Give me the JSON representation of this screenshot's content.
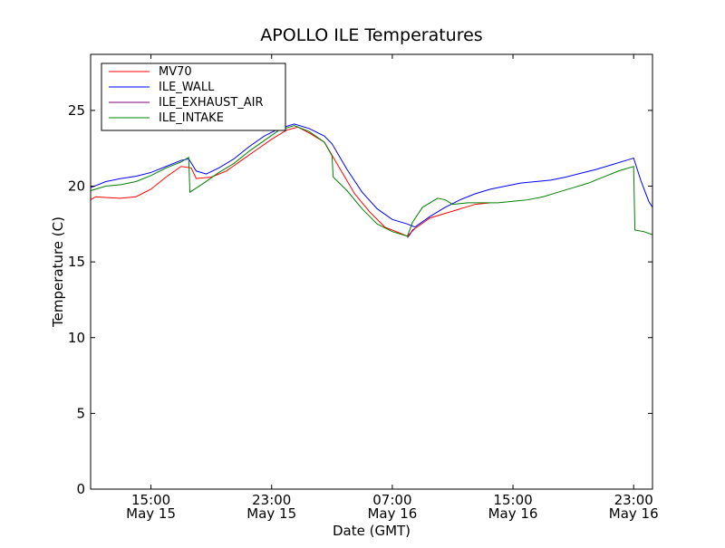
{
  "chart_data": {
    "type": "line",
    "title": "APOLLO ILE Temperatures",
    "xlabel": "Date (GMT)",
    "ylabel": "Temperature (C)",
    "xlim": [
      "2013-05-15 11:00",
      "2013-05-17 00:15"
    ],
    "ylim": [
      0,
      28.7
    ],
    "grid": false,
    "legend_position": "top-left",
    "x_ticks": [
      {
        "x": "2013-05-15 15:00",
        "line1": "15:00",
        "line2": "May 15"
      },
      {
        "x": "2013-05-15 23:00",
        "line1": "23:00",
        "line2": "May 15"
      },
      {
        "x": "2013-05-16 07:00",
        "line1": "07:00",
        "line2": "May 16"
      },
      {
        "x": "2013-05-16 15:00",
        "line1": "15:00",
        "line2": "May 16"
      },
      {
        "x": "2013-05-16 23:00",
        "line1": "23:00",
        "line2": "May 16"
      }
    ],
    "y_ticks": [
      0,
      5,
      10,
      15,
      20,
      25
    ],
    "series": [
      {
        "name": "MV70",
        "color": "#ff0000",
        "points": [
          [
            "2013-05-15 11:00",
            19.1
          ],
          [
            "2013-05-15 11:20",
            19.3
          ],
          [
            "2013-05-15 12:00",
            19.25
          ],
          [
            "2013-05-15 13:00",
            19.2
          ],
          [
            "2013-05-15 14:00",
            19.3
          ],
          [
            "2013-05-15 15:00",
            19.8
          ],
          [
            "2013-05-15 16:00",
            20.6
          ],
          [
            "2013-05-15 17:00",
            21.3
          ],
          [
            "2013-05-15 17:40",
            21.2
          ],
          [
            "2013-05-15 18:00",
            20.5
          ],
          [
            "2013-05-15 19:00",
            20.6
          ],
          [
            "2013-05-15 20:00",
            21.0
          ],
          [
            "2013-05-15 21:00",
            21.7
          ],
          [
            "2013-05-15 22:00",
            22.4
          ],
          [
            "2013-05-15 23:00",
            23.1
          ],
          [
            "2013-05-16 00:00",
            23.7
          ],
          [
            "2013-05-16 00:45",
            23.9
          ],
          [
            "2013-05-16 01:30",
            23.5
          ],
          [
            "2013-05-16 02:30",
            22.9
          ],
          [
            "2013-05-16 03:30",
            21.2
          ],
          [
            "2013-05-16 04:30",
            19.5
          ],
          [
            "2013-05-16 05:30",
            18.3
          ],
          [
            "2013-05-16 06:30",
            17.3
          ],
          [
            "2013-05-16 07:30",
            16.9
          ],
          [
            "2013-05-16 08:00",
            16.7
          ],
          [
            "2013-05-16 08:30",
            17.2
          ],
          [
            "2013-05-16 09:30",
            17.9
          ],
          [
            "2013-05-16 10:30",
            18.2
          ],
          [
            "2013-05-16 11:30",
            18.5
          ],
          [
            "2013-05-16 12:30",
            18.8
          ],
          [
            "2013-05-16 13:30",
            18.9
          ]
        ]
      },
      {
        "name": "ILE_WALL",
        "color": "#0000ff",
        "points": [
          [
            "2013-05-15 11:00",
            19.9
          ],
          [
            "2013-05-15 12:00",
            20.3
          ],
          [
            "2013-05-15 13:00",
            20.5
          ],
          [
            "2013-05-15 14:00",
            20.65
          ],
          [
            "2013-05-15 15:00",
            20.9
          ],
          [
            "2013-05-15 16:00",
            21.3
          ],
          [
            "2013-05-15 17:00",
            21.7
          ],
          [
            "2013-05-15 17:30",
            21.8
          ],
          [
            "2013-05-15 18:00",
            21.0
          ],
          [
            "2013-05-15 18:40",
            20.8
          ],
          [
            "2013-05-15 19:30",
            21.2
          ],
          [
            "2013-05-15 20:30",
            21.8
          ],
          [
            "2013-05-15 21:30",
            22.6
          ],
          [
            "2013-05-15 22:30",
            23.3
          ],
          [
            "2013-05-15 23:30",
            23.8
          ],
          [
            "2013-05-16 00:30",
            24.1
          ],
          [
            "2013-05-16 01:30",
            23.8
          ],
          [
            "2013-05-16 02:30",
            23.3
          ],
          [
            "2013-05-16 03:00",
            22.8
          ],
          [
            "2013-05-16 04:00",
            21.1
          ],
          [
            "2013-05-16 05:00",
            19.6
          ],
          [
            "2013-05-16 06:00",
            18.5
          ],
          [
            "2013-05-16 07:00",
            17.8
          ],
          [
            "2013-05-16 08:00",
            17.5
          ],
          [
            "2013-05-16 08:30",
            17.3
          ],
          [
            "2013-05-16 09:30",
            18.0
          ],
          [
            "2013-05-16 10:30",
            18.6
          ],
          [
            "2013-05-16 11:30",
            19.1
          ],
          [
            "2013-05-16 12:30",
            19.5
          ],
          [
            "2013-05-16 13:30",
            19.8
          ],
          [
            "2013-05-16 14:30",
            20.0
          ],
          [
            "2013-05-16 15:30",
            20.2
          ],
          [
            "2013-05-16 16:30",
            20.3
          ],
          [
            "2013-05-16 17:30",
            20.4
          ],
          [
            "2013-05-16 18:30",
            20.6
          ],
          [
            "2013-05-16 19:30",
            20.85
          ],
          [
            "2013-05-16 20:30",
            21.1
          ],
          [
            "2013-05-16 21:30",
            21.4
          ],
          [
            "2013-05-16 22:30",
            21.7
          ],
          [
            "2013-05-16 23:00",
            21.85
          ],
          [
            "2013-05-16 23:30",
            20.3
          ],
          [
            "2013-05-17 00:00",
            19.0
          ],
          [
            "2013-05-17 00:15",
            18.6
          ]
        ]
      },
      {
        "name": "ILE_EXHAUST_AIR",
        "color": "#800080",
        "points": [
          [
            "2013-05-16 08:00",
            16.6
          ],
          [
            "2013-05-16 08:10",
            16.8
          ],
          [
            "2013-05-16 08:20",
            17.1
          ],
          [
            "2013-05-16 08:30",
            17.2
          ]
        ]
      },
      {
        "name": "ILE_INTAKE",
        "color": "#008000",
        "points": [
          [
            "2013-05-15 11:00",
            19.7
          ],
          [
            "2013-05-15 12:00",
            20.0
          ],
          [
            "2013-05-15 13:00",
            20.1
          ],
          [
            "2013-05-15 14:00",
            20.3
          ],
          [
            "2013-05-15 15:00",
            20.7
          ],
          [
            "2013-05-15 16:00",
            21.2
          ],
          [
            "2013-05-15 17:00",
            21.6
          ],
          [
            "2013-05-15 17:30",
            21.9
          ],
          [
            "2013-05-15 17:35",
            19.6
          ],
          [
            "2013-05-15 18:30",
            20.2
          ],
          [
            "2013-05-15 19:30",
            20.9
          ],
          [
            "2013-05-15 20:30",
            21.5
          ],
          [
            "2013-05-15 21:30",
            22.3
          ],
          [
            "2013-05-15 22:30",
            23.0
          ],
          [
            "2013-05-15 23:30",
            23.7
          ],
          [
            "2013-05-16 00:30",
            24.0
          ],
          [
            "2013-05-16 01:30",
            23.6
          ],
          [
            "2013-05-16 02:30",
            22.9
          ],
          [
            "2013-05-16 03:00",
            22.0
          ],
          [
            "2013-05-16 03:05",
            20.6
          ],
          [
            "2013-05-16 04:00",
            19.7
          ],
          [
            "2013-05-16 05:00",
            18.5
          ],
          [
            "2013-05-16 06:00",
            17.5
          ],
          [
            "2013-05-16 07:00",
            17.0
          ],
          [
            "2013-05-16 08:00",
            16.7
          ],
          [
            "2013-05-16 08:20",
            17.6
          ],
          [
            "2013-05-16 09:00",
            18.6
          ],
          [
            "2013-05-16 10:00",
            19.2
          ],
          [
            "2013-05-16 10:30",
            19.1
          ],
          [
            "2013-05-16 11:00",
            18.8
          ],
          [
            "2013-05-16 12:00",
            18.9
          ],
          [
            "2013-05-16 13:00",
            18.9
          ],
          [
            "2013-05-16 14:00",
            18.9
          ],
          [
            "2013-05-16 15:00",
            19.0
          ],
          [
            "2013-05-16 16:00",
            19.1
          ],
          [
            "2013-05-16 17:00",
            19.3
          ],
          [
            "2013-05-16 18:00",
            19.6
          ],
          [
            "2013-05-16 19:00",
            19.9
          ],
          [
            "2013-05-16 20:00",
            20.2
          ],
          [
            "2013-05-16 21:00",
            20.6
          ],
          [
            "2013-05-16 22:00",
            21.0
          ],
          [
            "2013-05-16 23:00",
            21.3
          ],
          [
            "2013-05-16 23:05",
            17.1
          ],
          [
            "2013-05-16 23:40",
            17.0
          ],
          [
            "2013-05-17 00:15",
            16.8
          ]
        ]
      }
    ]
  }
}
